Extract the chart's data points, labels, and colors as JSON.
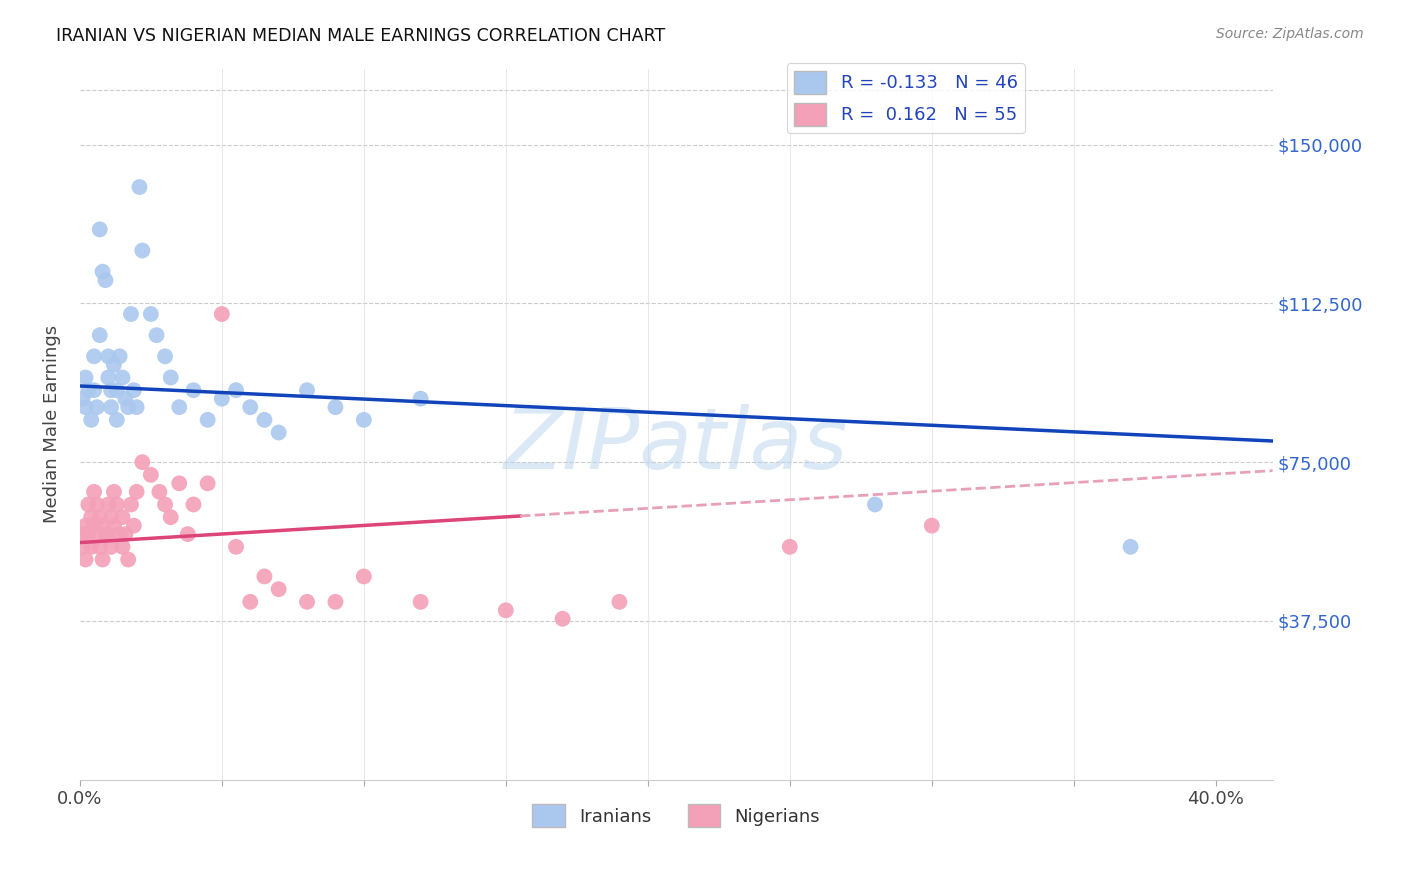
{
  "title": "IRANIAN VS NIGERIAN MEDIAN MALE EARNINGS CORRELATION CHART",
  "source": "Source: ZipAtlas.com",
  "ylabel": "Median Male Earnings",
  "yticks": [
    0,
    37500,
    75000,
    112500,
    150000
  ],
  "ytick_labels": [
    "",
    "$37,500",
    "$75,000",
    "$112,500",
    "$150,000"
  ],
  "xlim": [
    0.0,
    0.42
  ],
  "ylim": [
    0,
    168000
  ],
  "background_color": "#ffffff",
  "grid_color": "#cccccc",
  "iranian_color": "#aac8ee",
  "nigerian_color": "#f4a0b8",
  "iranian_line_color": "#1144bb",
  "nigerian_line_color": "#dd4477",
  "nigerian_dashed_color": "#e8a0b8",
  "iranian_R": "-0.133",
  "iranian_N": "46",
  "nigerian_R": "0.162",
  "nigerian_N": "55",
  "iranians_x": [
    0.001,
    0.002,
    0.002,
    0.003,
    0.004,
    0.005,
    0.005,
    0.006,
    0.007,
    0.007,
    0.008,
    0.009,
    0.01,
    0.01,
    0.011,
    0.011,
    0.012,
    0.013,
    0.013,
    0.014,
    0.015,
    0.016,
    0.017,
    0.018,
    0.019,
    0.02,
    0.021,
    0.022,
    0.025,
    0.027,
    0.03,
    0.032,
    0.035,
    0.04,
    0.045,
    0.05,
    0.055,
    0.06,
    0.065,
    0.07,
    0.08,
    0.09,
    0.1,
    0.12,
    0.28,
    0.37
  ],
  "iranians_y": [
    90000,
    88000,
    95000,
    92000,
    85000,
    100000,
    92000,
    88000,
    130000,
    105000,
    120000,
    118000,
    100000,
    95000,
    92000,
    88000,
    98000,
    92000,
    85000,
    100000,
    95000,
    90000,
    88000,
    110000,
    92000,
    88000,
    140000,
    125000,
    110000,
    105000,
    100000,
    95000,
    88000,
    92000,
    85000,
    90000,
    92000,
    88000,
    85000,
    82000,
    92000,
    88000,
    85000,
    90000,
    65000,
    55000
  ],
  "nigerians_x": [
    0.001,
    0.001,
    0.002,
    0.002,
    0.003,
    0.003,
    0.004,
    0.004,
    0.005,
    0.005,
    0.006,
    0.006,
    0.007,
    0.007,
    0.008,
    0.008,
    0.009,
    0.01,
    0.01,
    0.011,
    0.011,
    0.012,
    0.012,
    0.013,
    0.014,
    0.015,
    0.015,
    0.016,
    0.017,
    0.018,
    0.019,
    0.02,
    0.022,
    0.025,
    0.028,
    0.03,
    0.032,
    0.035,
    0.038,
    0.04,
    0.045,
    0.05,
    0.055,
    0.06,
    0.065,
    0.07,
    0.08,
    0.09,
    0.1,
    0.12,
    0.15,
    0.17,
    0.19,
    0.25,
    0.3
  ],
  "nigerians_y": [
    58000,
    55000,
    60000,
    52000,
    65000,
    58000,
    62000,
    55000,
    68000,
    60000,
    65000,
    58000,
    62000,
    55000,
    60000,
    52000,
    58000,
    65000,
    58000,
    62000,
    55000,
    68000,
    60000,
    65000,
    58000,
    62000,
    55000,
    58000,
    52000,
    65000,
    60000,
    68000,
    75000,
    72000,
    68000,
    65000,
    62000,
    70000,
    58000,
    65000,
    70000,
    110000,
    55000,
    42000,
    48000,
    45000,
    42000,
    42000,
    48000,
    42000,
    40000,
    38000,
    42000,
    55000,
    60000
  ],
  "iran_line_x0": 0.0,
  "iran_line_x1": 0.42,
  "iran_line_y0": 93000,
  "iran_line_y1": 80000,
  "nig_line_x0": 0.0,
  "nig_line_solid_end": 0.155,
  "nig_line_x1": 0.42,
  "nig_line_y0": 56000,
  "nig_line_y1": 73000,
  "watermark_text": "ZIPatlas"
}
